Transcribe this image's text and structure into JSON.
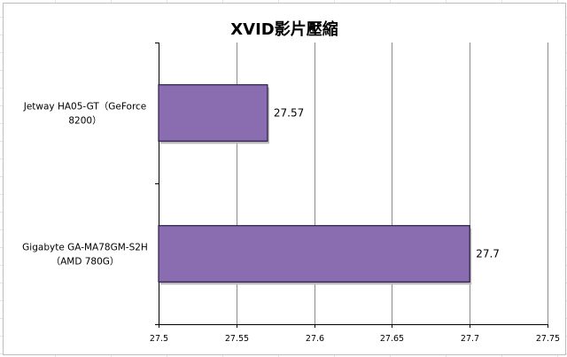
{
  "chart_data": {
    "type": "bar",
    "orientation": "horizontal",
    "title": "XVID影片壓縮",
    "categories": [
      [
        "Jetway HA05-GT（GeForce",
        "8200）"
      ],
      [
        "Gigabyte GA-MA78GM-S2H",
        "（AMD 780G）"
      ]
    ],
    "values": [
      27.57,
      27.7
    ],
    "data_labels": [
      "27.57",
      "27.7"
    ],
    "xlim": [
      27.5,
      27.75
    ],
    "x_ticks": [
      "27.5",
      "27.55",
      "27.6",
      "27.65",
      "27.7",
      "27.75"
    ],
    "xlabel": "",
    "ylabel": "",
    "grid": true,
    "legend": "none",
    "colors": {
      "bar_fill": "#8a6db1",
      "bar_edge": "#2a1a44",
      "gridline": "#8c8c8c"
    }
  }
}
